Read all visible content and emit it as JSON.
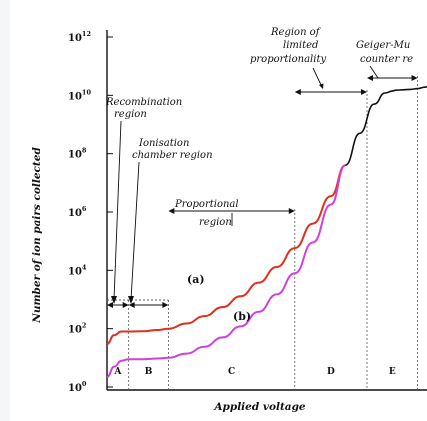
{
  "chart_data": {
    "type": "line",
    "title": "",
    "xlabel": "Applied voltage",
    "ylabel": "Number of ion pairs collected",
    "y_scale": "log",
    "ylim": [
      1,
      1000000000000
    ],
    "y_ticks": [
      {
        "base": "10",
        "exp": "0"
      },
      {
        "base": "10",
        "exp": "2"
      },
      {
        "base": "10",
        "exp": "4"
      },
      {
        "base": "10",
        "exp": "6"
      },
      {
        "base": "10",
        "exp": "8"
      },
      {
        "base": "10",
        "exp": "10"
      },
      {
        "base": "10",
        "exp": "12"
      }
    ],
    "x_range": [
      0,
      100
    ],
    "grid": false,
    "regions": [
      {
        "letter": "A",
        "x_start": 0,
        "x_end": 6
      },
      {
        "letter": "B",
        "x_start": 6,
        "x_end": 17
      },
      {
        "letter": "C",
        "x_start": 17,
        "x_end": 52
      },
      {
        "letter": "D",
        "x_start": 52,
        "x_end": 72
      },
      {
        "letter": "E",
        "x_start": 72,
        "x_end": 86
      }
    ],
    "series": [
      {
        "name": "(a)",
        "color": "#e0301c",
        "x": [
          0,
          2,
          4,
          6,
          10,
          14,
          17,
          22,
          27,
          32,
          37,
          42,
          47,
          52,
          57,
          62,
          66
        ],
        "y": [
          30,
          60,
          80,
          80,
          82,
          90,
          100,
          150,
          270,
          550,
          1300,
          3800,
          13000,
          58000,
          400000,
          3500000,
          40000000
        ]
      },
      {
        "name": "(b)",
        "color": "#d040e0",
        "x": [
          0,
          2,
          4,
          6,
          10,
          14,
          17,
          22,
          27,
          32,
          37,
          42,
          47,
          52,
          57,
          62,
          66
        ],
        "y": [
          2.2,
          5,
          8,
          9,
          9,
          9.5,
          10,
          14,
          24,
          50,
          120,
          380,
          1500,
          8000,
          90000,
          1800000,
          40000000
        ]
      },
      {
        "name": "",
        "color": "#111111",
        "x": [
          66,
          70,
          74,
          77,
          79,
          80,
          82,
          84,
          86,
          88,
          90
        ],
        "y": [
          40000000,
          500000000,
          5000000000,
          12000000000,
          14000000000,
          15000000000,
          15500000000,
          16000000000,
          17000000000,
          19000000000,
          25000000000
        ]
      }
    ],
    "annotations": [
      {
        "text": "Recombination",
        "target": "region-a"
      },
      {
        "text": "region",
        "target": "region-a"
      },
      {
        "text": "Ionisation",
        "target": "region-b"
      },
      {
        "text": "chamber region",
        "target": "region-b"
      },
      {
        "text": "Proportional",
        "target": "region-c"
      },
      {
        "text": "region",
        "target": "region-c"
      },
      {
        "text": "Region of",
        "target": "region-d"
      },
      {
        "text": "limited",
        "target": "region-d"
      },
      {
        "text": "proportionality",
        "target": "region-d"
      },
      {
        "text": "Geiger-Mu",
        "target": "region-e"
      },
      {
        "text": "counter re",
        "target": "region-e"
      }
    ]
  }
}
